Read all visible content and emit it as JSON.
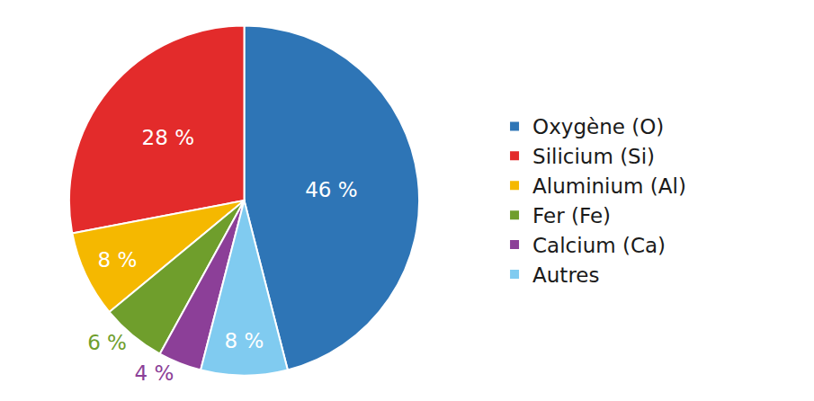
{
  "chart_data": {
    "type": "pie",
    "categories": [
      "Oxygène (O)",
      "Silicium (Si)",
      "Aluminium (Al)",
      "Fer (Fe)",
      "Calcium (Ca)",
      "Autres"
    ],
    "values": [
      46,
      28,
      8,
      6,
      4,
      8
    ],
    "value_labels": [
      "46 %",
      "28 %",
      "8 %",
      "6 %",
      "4 %",
      "8 %"
    ],
    "colors": [
      "#2e75b6",
      "#e32b2b",
      "#f5b800",
      "#6f9e2c",
      "#8c3f98",
      "#80cbf0"
    ],
    "data_labels": true,
    "legend": "right"
  }
}
